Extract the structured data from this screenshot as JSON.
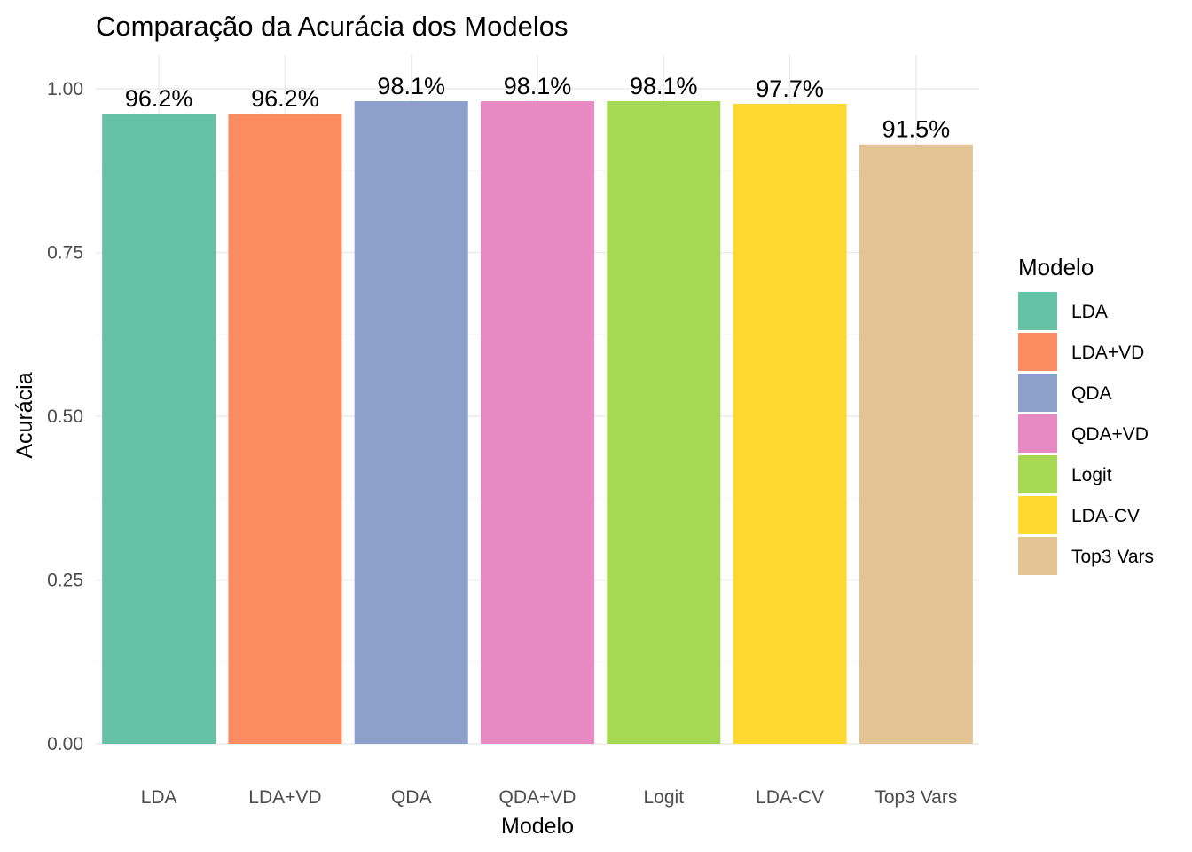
{
  "chart_data": {
    "type": "bar",
    "title": "Comparação da Acurácia dos Modelos",
    "xlabel": "Modelo",
    "ylabel": "Acurácia",
    "categories": [
      "LDA",
      "LDA+VD",
      "QDA",
      "QDA+VD",
      "Logit",
      "LDA-CV",
      "Top3 Vars"
    ],
    "values": [
      0.962,
      0.962,
      0.981,
      0.981,
      0.981,
      0.977,
      0.915
    ],
    "data_labels": [
      "96.2%",
      "96.2%",
      "98.1%",
      "98.1%",
      "98.1%",
      "97.7%",
      "91.5%"
    ],
    "colors": [
      "#66c2a5",
      "#fc8d62",
      "#8da0cb",
      "#e78ac3",
      "#a6d854",
      "#ffd92f",
      "#e5c494"
    ],
    "yticks": [
      0,
      0.25,
      0.5,
      0.75,
      1.0
    ],
    "ytick_labels": [
      "0.00",
      "0.25",
      "0.50",
      "0.75",
      "1.00"
    ],
    "ylim": [
      0,
      1.03
    ],
    "grid": true,
    "legend": {
      "title": "Modelo",
      "position": "right",
      "entries": [
        "LDA",
        "LDA+VD",
        "QDA",
        "QDA+VD",
        "Logit",
        "LDA-CV",
        "Top3 Vars"
      ]
    }
  }
}
